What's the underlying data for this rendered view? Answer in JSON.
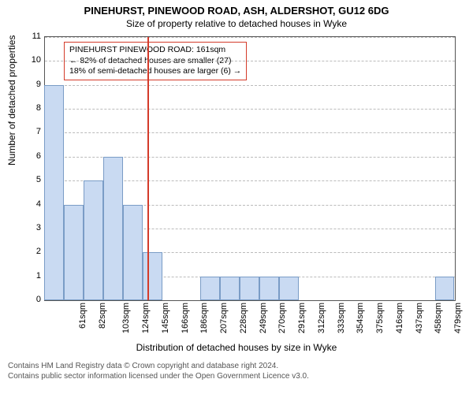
{
  "title_main": "PINEHURST, PINEWOOD ROAD, ASH, ALDERSHOT, GU12 6DG",
  "title_sub": "Size of property relative to detached houses in Wyke",
  "ylabel": "Number of detached properties",
  "xlabel": "Distribution of detached houses by size in Wyke",
  "annotation": {
    "line1": "PINEHURST PINEWOOD ROAD: 161sqm",
    "line2": "← 82% of detached houses are smaller (27)",
    "line3": "18% of semi-detached houses are larger (6) →"
  },
  "footer_line1": "Contains HM Land Registry data © Crown copyright and database right 2024.",
  "footer_line2": "Contains public sector information licensed under the Open Government Licence v3.0.",
  "chart": {
    "type": "histogram",
    "background_color": "#ffffff",
    "grid_color": "#bbbbbb",
    "bar_fill": "#c9daf2",
    "bar_border": "#7a9cc6",
    "ref_line_color": "#d43b2a",
    "ref_line_x": 161,
    "ylim": [
      0,
      11
    ],
    "ytick_step": 1,
    "xlim": [
      51,
      490
    ],
    "xtick_start": 61,
    "xtick_step": 20.9,
    "xtick_labels": [
      "61sqm",
      "82sqm",
      "103sqm",
      "124sqm",
      "145sqm",
      "166sqm",
      "186sqm",
      "207sqm",
      "228sqm",
      "249sqm",
      "270sqm",
      "291sqm",
      "312sqm",
      "333sqm",
      "354sqm",
      "375sqm",
      "416sqm",
      "437sqm",
      "458sqm",
      "479sqm"
    ],
    "bars": [
      {
        "x": 61,
        "h": 9
      },
      {
        "x": 82,
        "h": 4
      },
      {
        "x": 103,
        "h": 5
      },
      {
        "x": 124,
        "h": 6
      },
      {
        "x": 145,
        "h": 4
      },
      {
        "x": 166,
        "h": 2
      },
      {
        "x": 228,
        "h": 1
      },
      {
        "x": 249,
        "h": 1
      },
      {
        "x": 270,
        "h": 1
      },
      {
        "x": 291,
        "h": 1
      },
      {
        "x": 312,
        "h": 1
      },
      {
        "x": 479,
        "h": 1
      }
    ],
    "bar_width": 20.9,
    "title_fontsize": 13,
    "subtitle_fontsize": 12,
    "label_fontsize": 12,
    "tick_fontsize": 11,
    "annotation_fontsize": 10.5,
    "footer_fontsize": 10
  }
}
